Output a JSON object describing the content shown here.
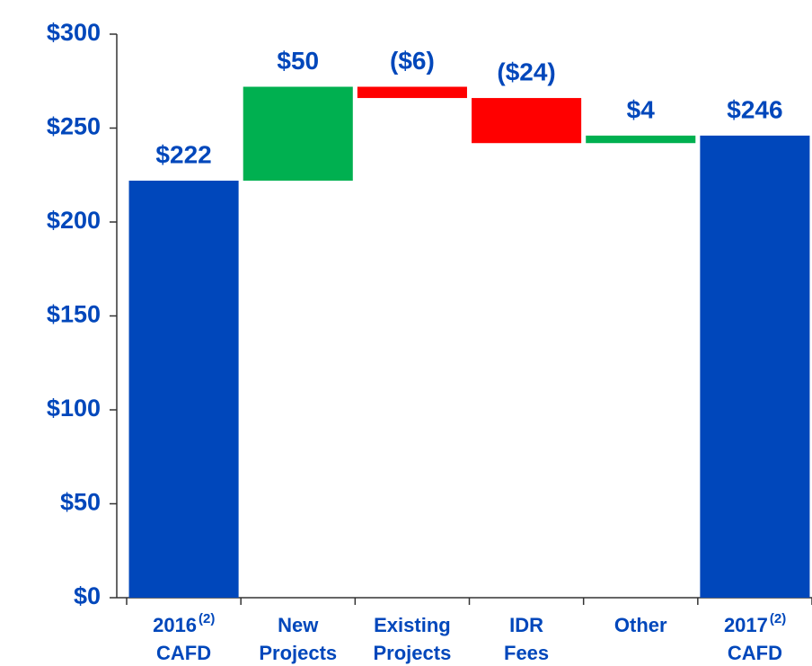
{
  "chart_data": {
    "type": "waterfall",
    "categories": [
      [
        "2016",
        "CAFD"
      ],
      [
        "New",
        "Projects"
      ],
      [
        "Existing",
        "Projects"
      ],
      [
        "IDR",
        "Fees"
      ],
      [
        "Other"
      ],
      [
        "2017",
        "CAFD"
      ]
    ],
    "category_notes": [
      "(2)",
      null,
      null,
      null,
      null,
      "(2)"
    ],
    "values": [
      222,
      50,
      -6,
      -24,
      4,
      246
    ],
    "value_labels": [
      "$222",
      "$50",
      "($6)",
      "($24)",
      "$4",
      "$246"
    ],
    "totals": [
      true,
      false,
      false,
      false,
      false,
      true
    ],
    "colors": [
      "#0047bb",
      "#00b050",
      "#ff0000",
      "#ff0000",
      "#00b050",
      "#0047bb"
    ],
    "ylim": [
      0,
      300
    ],
    "yticks": [
      {
        "value": 0,
        "label": "$0"
      },
      {
        "value": 50,
        "label": "$50"
      },
      {
        "value": 100,
        "label": "$100"
      },
      {
        "value": 150,
        "label": "$150"
      },
      {
        "value": 200,
        "label": "$200"
      },
      {
        "value": 250,
        "label": "$250"
      },
      {
        "value": 300,
        "label": "$300"
      }
    ],
    "grid": false
  }
}
